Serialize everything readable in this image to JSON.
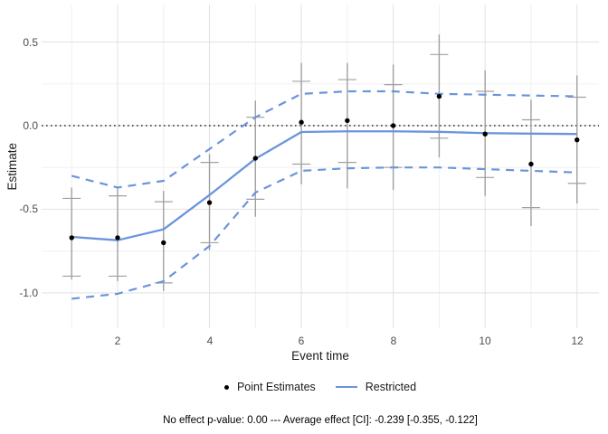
{
  "chart_data": {
    "type": "line",
    "title": "",
    "xlabel": "Event time",
    "ylabel": "Estimate",
    "xlim": [
      0.346,
      12.478
    ],
    "ylim": [
      -1.211,
      0.724
    ],
    "grid": true,
    "x_major_ticks": [
      2,
      4,
      6,
      8,
      10,
      12
    ],
    "x_tick_labels": [
      "2",
      "4",
      "6",
      "8",
      "10",
      "12"
    ],
    "x_minor_ticks": [
      1,
      3,
      5,
      7,
      9,
      11
    ],
    "y_major_ticks": [
      0.5,
      0.0,
      -0.5,
      -1.0
    ],
    "y_tick_labels": [
      "0.5",
      "0.0",
      "-0.5",
      "-1.0"
    ],
    "y_minor_ticks": [
      0.25,
      -0.25,
      -0.75
    ],
    "zero_reference_line": 0,
    "x": [
      1,
      2,
      3,
      4,
      5,
      6,
      7,
      8,
      9,
      10,
      11,
      12
    ],
    "series": [
      {
        "name": "Point Estimates",
        "type": "scatter",
        "color": "#000000",
        "values": [
          -0.67,
          -0.67,
          -0.7,
          -0.46,
          -0.195,
          0.02,
          0.03,
          0.0,
          0.175,
          -0.05,
          -0.23,
          -0.085
        ]
      },
      {
        "name": "Pointwise confidence interval (caps)",
        "type": "errorbar",
        "color": "#a0a0a0",
        "lower": [
          -0.9,
          -0.9,
          -0.94,
          -0.7,
          -0.44,
          -0.23,
          -0.22,
          -0.25,
          -0.075,
          -0.31,
          -0.49,
          -0.345
        ],
        "upper": [
          -0.435,
          -0.42,
          -0.455,
          -0.22,
          0.05,
          0.265,
          0.275,
          0.245,
          0.425,
          0.205,
          0.035,
          0.17
        ]
      },
      {
        "name": "Uniform band (vertical line)",
        "type": "errorbar-line",
        "color": "#a0a0a0",
        "lower": [
          -0.92,
          -0.93,
          -0.99,
          -0.745,
          -0.545,
          -0.35,
          -0.375,
          -0.385,
          -0.19,
          -0.42,
          -0.6,
          -0.465
        ],
        "upper": [
          -0.37,
          -0.375,
          -0.39,
          -0.17,
          0.15,
          0.375,
          0.375,
          0.365,
          0.545,
          0.33,
          0.155,
          0.3
        ]
      },
      {
        "name": "Restricted",
        "type": "line",
        "color": "#6b94dd",
        "values": [
          -0.665,
          -0.685,
          -0.62,
          -0.415,
          -0.198,
          -0.038,
          -0.034,
          -0.034,
          -0.037,
          -0.045,
          -0.048,
          -0.05
        ]
      },
      {
        "name": "Restricted CI upper",
        "type": "line-dashed",
        "color": "#6b94dd",
        "values": [
          -0.3,
          -0.37,
          -0.33,
          -0.14,
          0.05,
          0.19,
          0.205,
          0.205,
          0.19,
          0.185,
          0.18,
          0.175
        ]
      },
      {
        "name": "Restricted CI lower",
        "type": "line-dashed",
        "color": "#6b94dd",
        "values": [
          -1.035,
          -1.005,
          -0.93,
          -0.72,
          -0.4,
          -0.27,
          -0.255,
          -0.25,
          -0.25,
          -0.26,
          -0.27,
          -0.28
        ]
      }
    ],
    "legend": {
      "position": "bottom-center",
      "items": [
        {
          "label": "Point Estimates",
          "marker": "point"
        },
        {
          "label": "Restricted",
          "marker": "line"
        }
      ]
    },
    "caption": "No effect p-value: 0.00 --- Average effect [CI]: -0.239 [-0.355, -0.122]",
    "stats": {
      "no_effect_p_value": "0.00",
      "average_effect": "-0.239",
      "average_effect_ci": "[-0.355, -0.122]"
    }
  },
  "colors": {
    "accent_blue": "#6b94dd",
    "errorbar_gray": "#a0a0a0",
    "point_black": "#000000",
    "grid_major": "#e4e4e4",
    "grid_minor": "#f0f0f0",
    "zero_line": "#1a1a1a",
    "tick_label": "#4d4d4d",
    "background": "#ffffff"
  }
}
